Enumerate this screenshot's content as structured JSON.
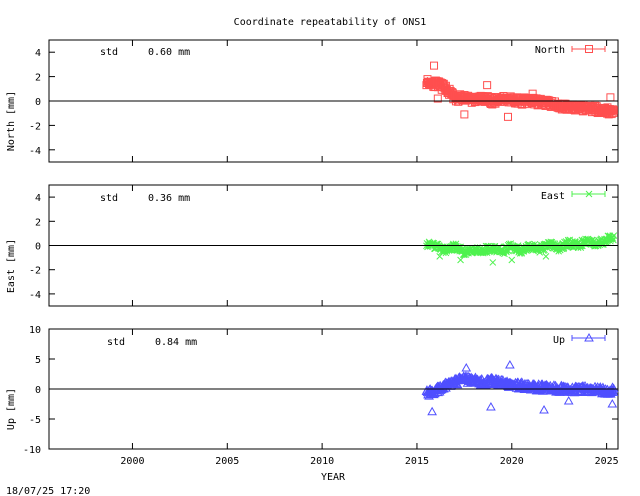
{
  "title": "Coordinate repeatability of ONS1",
  "footer_timestamp": "18/07/25 17:20",
  "chart_data": [
    {
      "type": "scatter",
      "ylabel": "North [mm]",
      "ylim": [
        -5,
        5
      ],
      "yticks": [
        4,
        2,
        0,
        -2,
        -4
      ],
      "stat_label": "std",
      "stat_value": "0.60 mm",
      "series": [
        {
          "name": "North",
          "color": "#ff4f4f",
          "marker": "square"
        }
      ],
      "trend": [
        [
          2015.5,
          1.6
        ],
        [
          2016.0,
          1.4
        ],
        [
          2016.5,
          1.1
        ],
        [
          2017.0,
          0.2
        ],
        [
          2017.5,
          0.3
        ],
        [
          2018.0,
          0.1
        ],
        [
          2018.5,
          0.2
        ],
        [
          2019.0,
          0.0
        ],
        [
          2019.5,
          0.2
        ],
        [
          2020.0,
          0.1
        ],
        [
          2020.5,
          0.0
        ],
        [
          2021.0,
          0.0
        ],
        [
          2021.5,
          -0.1
        ],
        [
          2022.0,
          -0.2
        ],
        [
          2022.5,
          -0.4
        ],
        [
          2023.0,
          -0.5
        ],
        [
          2023.5,
          -0.6
        ],
        [
          2024.0,
          -0.6
        ],
        [
          2024.5,
          -0.7
        ],
        [
          2025.0,
          -0.8
        ],
        [
          2025.4,
          -0.8
        ]
      ],
      "outliers": [
        [
          2015.9,
          2.9
        ],
        [
          2016.1,
          0.2
        ],
        [
          2017.5,
          -1.1
        ],
        [
          2018.7,
          1.3
        ],
        [
          2019.8,
          -1.3
        ],
        [
          2021.1,
          0.6
        ],
        [
          2025.2,
          0.3
        ]
      ]
    },
    {
      "type": "scatter",
      "ylabel": "East [mm]",
      "ylim": [
        -5,
        5
      ],
      "yticks": [
        4,
        2,
        0,
        -2,
        -4
      ],
      "stat_label": "std",
      "stat_value": "0.36 mm",
      "series": [
        {
          "name": "East",
          "color": "#4ff24f",
          "marker": "x"
        }
      ],
      "trend": [
        [
          2015.5,
          0.1
        ],
        [
          2016.0,
          0.0
        ],
        [
          2016.5,
          -0.4
        ],
        [
          2017.0,
          -0.1
        ],
        [
          2017.5,
          -0.6
        ],
        [
          2018.0,
          -0.3
        ],
        [
          2018.5,
          -0.4
        ],
        [
          2019.0,
          -0.2
        ],
        [
          2019.5,
          -0.5
        ],
        [
          2020.0,
          0.0
        ],
        [
          2020.5,
          -0.4
        ],
        [
          2021.0,
          -0.1
        ],
        [
          2021.5,
          -0.3
        ],
        [
          2022.0,
          0.1
        ],
        [
          2022.5,
          -0.2
        ],
        [
          2023.0,
          0.2
        ],
        [
          2023.5,
          0.0
        ],
        [
          2024.0,
          0.4
        ],
        [
          2024.5,
          0.1
        ],
        [
          2025.0,
          0.5
        ],
        [
          2025.4,
          0.6
        ]
      ],
      "outliers": [
        [
          2016.2,
          -0.9
        ],
        [
          2017.3,
          -1.2
        ],
        [
          2019.0,
          -1.4
        ],
        [
          2020.0,
          -1.2
        ],
        [
          2021.8,
          -0.9
        ]
      ]
    },
    {
      "type": "scatter",
      "ylabel": "Up [mm]",
      "ylim": [
        -10,
        10
      ],
      "yticks": [
        10,
        5,
        0,
        -5,
        -10
      ],
      "stat_label": "std",
      "stat_value": "0.84 mm",
      "series": [
        {
          "name": "Up",
          "color": "#4f4fff",
          "marker": "triangle"
        }
      ],
      "trend": [
        [
          2015.5,
          -0.8
        ],
        [
          2016.0,
          -0.2
        ],
        [
          2016.5,
          0.5
        ],
        [
          2017.0,
          1.2
        ],
        [
          2017.5,
          1.6
        ],
        [
          2018.0,
          1.4
        ],
        [
          2018.5,
          1.0
        ],
        [
          2019.0,
          1.4
        ],
        [
          2019.5,
          0.9
        ],
        [
          2020.0,
          0.7
        ],
        [
          2020.5,
          0.6
        ],
        [
          2021.0,
          0.3
        ],
        [
          2021.5,
          0.2
        ],
        [
          2022.0,
          0.1
        ],
        [
          2022.5,
          0.0
        ],
        [
          2023.0,
          0.0
        ],
        [
          2023.5,
          -0.1
        ],
        [
          2024.0,
          -0.1
        ],
        [
          2024.5,
          -0.2
        ],
        [
          2025.0,
          -0.3
        ],
        [
          2025.4,
          -0.3
        ]
      ],
      "outliers": [
        [
          2015.8,
          -3.8
        ],
        [
          2017.6,
          3.5
        ],
        [
          2018.9,
          -3.0
        ],
        [
          2019.9,
          4.0
        ],
        [
          2021.7,
          -3.5
        ],
        [
          2023.0,
          -2.0
        ],
        [
          2025.3,
          -2.5
        ]
      ]
    }
  ],
  "x_axis": {
    "label": "YEAR",
    "xlim": [
      1995.6,
      2025.6
    ],
    "ticks": [
      2000,
      2005,
      2010,
      2015,
      2020,
      2025
    ]
  }
}
